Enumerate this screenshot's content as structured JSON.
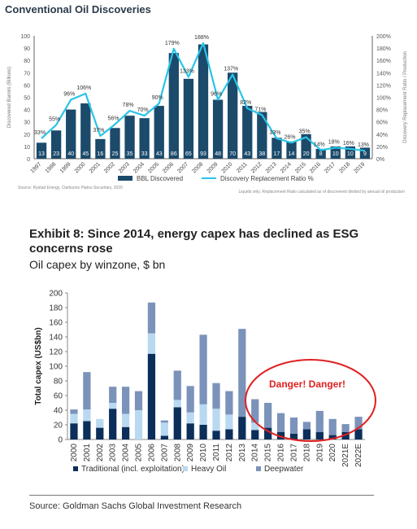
{
  "top": {
    "title": "Conventional Oil Discoveries",
    "source": "Source: Rystad Energy, Clarksons Platou Securities, 2020",
    "note": "Liquids only. Replacement Ratio calculated as of discovered divided by annual oil production"
  },
  "bottom": {
    "title": "Exhibit 8: Since 2014, energy capex has declined as ESG concerns rose",
    "subtitle": "Oil capex by winzone, $ bn",
    "annotation": "Danger! Danger!",
    "source": "Source: Goldman Sachs Global Investment Research"
  },
  "colors": {
    "bar_dark": "#1b4a6b",
    "line_cyan": "#29c4e6",
    "traditional": "#0b2f5a",
    "heavy_oil": "#b9d9f1",
    "deepwater": "#7b93ba",
    "danger": "#e02020"
  },
  "chart_data": [
    {
      "type": "bar",
      "title": "Conventional Oil Discoveries",
      "xlabel": "",
      "ylabel": "Discovered Barrels (Billions)",
      "y2label": "Discovery Replacement Ratio / Production",
      "ylim": [
        0,
        100
      ],
      "y2lim": [
        0,
        200
      ],
      "yticks": [
        "0",
        "10",
        "20",
        "30",
        "40",
        "50",
        "60",
        "70",
        "80",
        "90",
        "100"
      ],
      "y2ticks": [
        "0%",
        "20%",
        "40%",
        "60%",
        "80%",
        "100%",
        "120%",
        "140%",
        "160%",
        "180%",
        "200%"
      ],
      "categories": [
        "1997",
        "1998",
        "1999",
        "2000",
        "2001",
        "2002",
        "2003",
        "2004",
        "2005",
        "2006",
        "2007",
        "2008",
        "2009",
        "2010",
        "2011",
        "2012",
        "2013",
        "2014",
        "2015",
        "2016",
        "2017",
        "2018",
        "2019"
      ],
      "series": [
        {
          "name": "BBL Discovered",
          "kind": "bar",
          "values": [
            13,
            23,
            40,
            45,
            16,
            25,
            35,
            33,
            43,
            86,
            65,
            93,
            48,
            70,
            43,
            38,
            17,
            14,
            20,
            8,
            10,
            10,
            9
          ],
          "labels": [
            "13",
            "23",
            "40",
            "45",
            "16",
            "25",
            "35",
            "33",
            "43",
            "86",
            "65",
            "93",
            "48",
            "70",
            "43",
            "38",
            "17",
            "14",
            "20",
            "8",
            "10",
            "10",
            "9"
          ]
        },
        {
          "name": "Discovery Replacement Ratio %",
          "kind": "line",
          "axis": "right",
          "values": [
            33,
            55,
            96,
            106,
            37,
            56,
            78,
            70,
            90,
            179,
            133,
            188,
            96,
            137,
            82,
            71,
            33,
            26,
            35,
            14,
            18,
            16,
            13
          ],
          "labels": [
            "33%",
            "55%",
            "96%",
            "106%",
            "37%",
            "56%",
            "78%",
            "70%",
            "90%",
            "179%",
            "133%",
            "188%",
            "96%",
            "137%",
            "82%",
            "71%",
            "33%",
            "26%",
            "35%",
            "14%",
            "18%",
            "16%",
            "13%"
          ]
        }
      ],
      "legend": "bottom",
      "grid": false
    },
    {
      "type": "bar",
      "stacked": true,
      "title": "Oil capex by winzone, $ bn",
      "xlabel": "",
      "ylabel": "Total capex (US$bn)",
      "ylim": [
        0,
        200
      ],
      "yticks": [
        "0",
        "20",
        "40",
        "60",
        "80",
        "100",
        "120",
        "140",
        "160",
        "180",
        "200"
      ],
      "categories": [
        "2000",
        "2001",
        "2002",
        "2003",
        "2004",
        "2005",
        "2006",
        "2007",
        "2008",
        "2009",
        "2010",
        "2011",
        "2012",
        "2013",
        "2014",
        "2015",
        "2016",
        "2017",
        "2018",
        "2019",
        "2020",
        "2021E",
        "2022E"
      ],
      "series": [
        {
          "name": "Traditional (incl. exploitation)",
          "values": [
            22,
            25,
            16,
            42,
            17,
            0,
            117,
            5,
            44,
            22,
            20,
            12,
            14,
            31,
            13,
            16,
            10,
            8,
            14,
            10,
            6,
            10,
            14
          ]
        },
        {
          "name": "Heavy Oil",
          "values": [
            13,
            16,
            12,
            8,
            18,
            40,
            28,
            18,
            10,
            15,
            28,
            30,
            20,
            0,
            10,
            0,
            0,
            0,
            0,
            0,
            0,
            0,
            0
          ]
        },
        {
          "name": "Deepwater",
          "values": [
            6,
            51,
            0,
            22,
            37,
            26,
            42,
            3,
            40,
            36,
            95,
            35,
            32,
            120,
            32,
            34,
            26,
            22,
            10,
            29,
            22,
            11,
            17
          ]
        }
      ],
      "legend": "bottom",
      "grid": false
    }
  ]
}
